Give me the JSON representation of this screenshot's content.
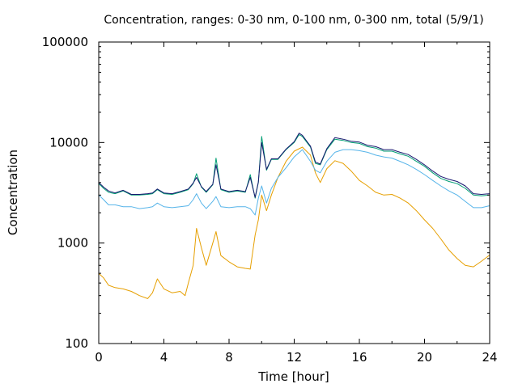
{
  "chart_data": {
    "type": "line",
    "title": "Concentration, ranges: 0-30 nm, 0-100 nm, 0-300 nm, total (5/9/1)",
    "xlabel": "Time [hour]",
    "ylabel": "Concentration",
    "xlim": [
      0,
      24
    ],
    "ylim": [
      100,
      100000
    ],
    "yscale": "log",
    "grid": false,
    "x_ticks": [
      "0",
      "4",
      "8",
      "12",
      "16",
      "20",
      "24"
    ],
    "y_ticks": [
      "100",
      "1000",
      "10000",
      "100000"
    ],
    "series": [
      {
        "color": "#e69f00",
        "points": [
          [
            0,
            500
          ],
          [
            0.3,
            450
          ],
          [
            0.6,
            380
          ],
          [
            1,
            360
          ],
          [
            1.5,
            350
          ],
          [
            2,
            330
          ],
          [
            2.5,
            300
          ],
          [
            3,
            280
          ],
          [
            3.3,
            320
          ],
          [
            3.6,
            440
          ],
          [
            4,
            350
          ],
          [
            4.5,
            320
          ],
          [
            5,
            330
          ],
          [
            5.3,
            300
          ],
          [
            5.5,
            400
          ],
          [
            5.8,
            600
          ],
          [
            6,
            1400
          ],
          [
            6.3,
            900
          ],
          [
            6.6,
            600
          ],
          [
            7,
            1000
          ],
          [
            7.2,
            1300
          ],
          [
            7.5,
            750
          ],
          [
            8,
            650
          ],
          [
            8.5,
            580
          ],
          [
            9,
            560
          ],
          [
            9.3,
            550
          ],
          [
            9.6,
            1200
          ],
          [
            9.8,
            1700
          ],
          [
            10,
            3000
          ],
          [
            10.3,
            2100
          ],
          [
            10.6,
            3000
          ],
          [
            11,
            4500
          ],
          [
            11.5,
            6500
          ],
          [
            12,
            8200
          ],
          [
            12.5,
            9000
          ],
          [
            13,
            7500
          ],
          [
            13.3,
            5000
          ],
          [
            13.6,
            4000
          ],
          [
            14,
            5500
          ],
          [
            14.5,
            6600
          ],
          [
            15,
            6200
          ],
          [
            15.5,
            5200
          ],
          [
            16,
            4200
          ],
          [
            16.5,
            3700
          ],
          [
            17,
            3200
          ],
          [
            17.5,
            3000
          ],
          [
            18,
            3050
          ],
          [
            18.5,
            2800
          ],
          [
            19,
            2500
          ],
          [
            19.5,
            2100
          ],
          [
            20,
            1700
          ],
          [
            20.5,
            1400
          ],
          [
            21,
            1100
          ],
          [
            21.5,
            850
          ],
          [
            22,
            700
          ],
          [
            22.5,
            600
          ],
          [
            23,
            580
          ],
          [
            23.5,
            660
          ],
          [
            24,
            760
          ]
        ]
      },
      {
        "color": "#56b4e9",
        "points": [
          [
            0,
            3000
          ],
          [
            0.3,
            2700
          ],
          [
            0.6,
            2400
          ],
          [
            1,
            2400
          ],
          [
            1.5,
            2300
          ],
          [
            2,
            2300
          ],
          [
            2.5,
            2200
          ],
          [
            3,
            2250
          ],
          [
            3.3,
            2300
          ],
          [
            3.6,
            2500
          ],
          [
            4,
            2300
          ],
          [
            4.5,
            2250
          ],
          [
            5,
            2300
          ],
          [
            5.5,
            2350
          ],
          [
            5.8,
            2700
          ],
          [
            6,
            3100
          ],
          [
            6.3,
            2500
          ],
          [
            6.6,
            2200
          ],
          [
            7,
            2600
          ],
          [
            7.2,
            2900
          ],
          [
            7.5,
            2300
          ],
          [
            8,
            2250
          ],
          [
            8.5,
            2300
          ],
          [
            9,
            2300
          ],
          [
            9.3,
            2200
          ],
          [
            9.6,
            1900
          ],
          [
            9.8,
            2800
          ],
          [
            10,
            3700
          ],
          [
            10.3,
            2500
          ],
          [
            10.6,
            3500
          ],
          [
            11,
            4500
          ],
          [
            11.5,
            5600
          ],
          [
            12,
            7200
          ],
          [
            12.5,
            8500
          ],
          [
            13,
            6500
          ],
          [
            13.3,
            5300
          ],
          [
            13.6,
            5000
          ],
          [
            14,
            6500
          ],
          [
            14.5,
            8000
          ],
          [
            15,
            8500
          ],
          [
            15.5,
            8500
          ],
          [
            16,
            8300
          ],
          [
            16.5,
            8000
          ],
          [
            17,
            7500
          ],
          [
            17.5,
            7200
          ],
          [
            18,
            7000
          ],
          [
            18.5,
            6500
          ],
          [
            19,
            6000
          ],
          [
            19.5,
            5400
          ],
          [
            20,
            4800
          ],
          [
            20.5,
            4200
          ],
          [
            21,
            3700
          ],
          [
            21.5,
            3300
          ],
          [
            22,
            3000
          ],
          [
            22.5,
            2600
          ],
          [
            23,
            2250
          ],
          [
            23.5,
            2250
          ],
          [
            24,
            2350
          ]
        ]
      },
      {
        "color": "#009e73",
        "points": [
          [
            0,
            3900
          ],
          [
            0.3,
            3500
          ],
          [
            0.6,
            3200
          ],
          [
            1,
            3100
          ],
          [
            1.5,
            3300
          ],
          [
            2,
            3000
          ],
          [
            2.5,
            3000
          ],
          [
            3,
            3050
          ],
          [
            3.3,
            3100
          ],
          [
            3.6,
            3400
          ],
          [
            4,
            3100
          ],
          [
            4.5,
            3050
          ],
          [
            5,
            3200
          ],
          [
            5.5,
            3400
          ],
          [
            5.8,
            3900
          ],
          [
            6,
            4900
          ],
          [
            6.3,
            3600
          ],
          [
            6.6,
            3200
          ],
          [
            7,
            3800
          ],
          [
            7.2,
            7000
          ],
          [
            7.5,
            3400
          ],
          [
            8,
            3200
          ],
          [
            8.5,
            3300
          ],
          [
            9,
            3200
          ],
          [
            9.3,
            4800
          ],
          [
            9.6,
            2800
          ],
          [
            9.8,
            4000
          ],
          [
            10,
            11500
          ],
          [
            10.3,
            5300
          ],
          [
            10.6,
            6800
          ],
          [
            11,
            6800
          ],
          [
            11.5,
            8500
          ],
          [
            12,
            10000
          ],
          [
            12.3,
            12000
          ],
          [
            12.5,
            11500
          ],
          [
            13,
            9000
          ],
          [
            13.3,
            6200
          ],
          [
            13.6,
            6000
          ],
          [
            14,
            8500
          ],
          [
            14.5,
            10800
          ],
          [
            15,
            10500
          ],
          [
            15.5,
            10000
          ],
          [
            16,
            9800
          ],
          [
            16.5,
            9100
          ],
          [
            17,
            8800
          ],
          [
            17.5,
            8200
          ],
          [
            18,
            8200
          ],
          [
            18.5,
            7700
          ],
          [
            19,
            7300
          ],
          [
            19.5,
            6500
          ],
          [
            20,
            5800
          ],
          [
            20.5,
            5000
          ],
          [
            21,
            4400
          ],
          [
            21.5,
            4100
          ],
          [
            22,
            3900
          ],
          [
            22.5,
            3500
          ],
          [
            23,
            3000
          ],
          [
            23.5,
            2950
          ],
          [
            24,
            3000
          ]
        ]
      },
      {
        "color": "#191970",
        "points": [
          [
            0,
            4000
          ],
          [
            0.3,
            3600
          ],
          [
            0.6,
            3300
          ],
          [
            1,
            3150
          ],
          [
            1.5,
            3350
          ],
          [
            2,
            3050
          ],
          [
            2.5,
            3050
          ],
          [
            3,
            3100
          ],
          [
            3.3,
            3150
          ],
          [
            3.6,
            3450
          ],
          [
            4,
            3150
          ],
          [
            4.5,
            3100
          ],
          [
            5,
            3250
          ],
          [
            5.5,
            3450
          ],
          [
            5.8,
            3950
          ],
          [
            6,
            4500
          ],
          [
            6.3,
            3650
          ],
          [
            6.6,
            3250
          ],
          [
            7,
            3850
          ],
          [
            7.2,
            6000
          ],
          [
            7.5,
            3450
          ],
          [
            8,
            3250
          ],
          [
            8.5,
            3350
          ],
          [
            9,
            3250
          ],
          [
            9.3,
            4500
          ],
          [
            9.6,
            2850
          ],
          [
            9.8,
            4050
          ],
          [
            10,
            10000
          ],
          [
            10.3,
            5400
          ],
          [
            10.6,
            6900
          ],
          [
            11,
            6900
          ],
          [
            11.5,
            8600
          ],
          [
            12,
            10200
          ],
          [
            12.3,
            12400
          ],
          [
            12.5,
            11800
          ],
          [
            13,
            9200
          ],
          [
            13.3,
            6400
          ],
          [
            13.6,
            6100
          ],
          [
            14,
            8700
          ],
          [
            14.5,
            11200
          ],
          [
            15,
            10800
          ],
          [
            15.5,
            10300
          ],
          [
            16,
            10100
          ],
          [
            16.5,
            9400
          ],
          [
            17,
            9100
          ],
          [
            17.5,
            8500
          ],
          [
            18,
            8500
          ],
          [
            18.5,
            8000
          ],
          [
            19,
            7600
          ],
          [
            19.5,
            6800
          ],
          [
            20,
            6000
          ],
          [
            20.5,
            5200
          ],
          [
            21,
            4600
          ],
          [
            21.5,
            4300
          ],
          [
            22,
            4100
          ],
          [
            22.5,
            3700
          ],
          [
            23,
            3100
          ],
          [
            23.5,
            3050
          ],
          [
            24,
            3100
          ]
        ]
      }
    ]
  }
}
